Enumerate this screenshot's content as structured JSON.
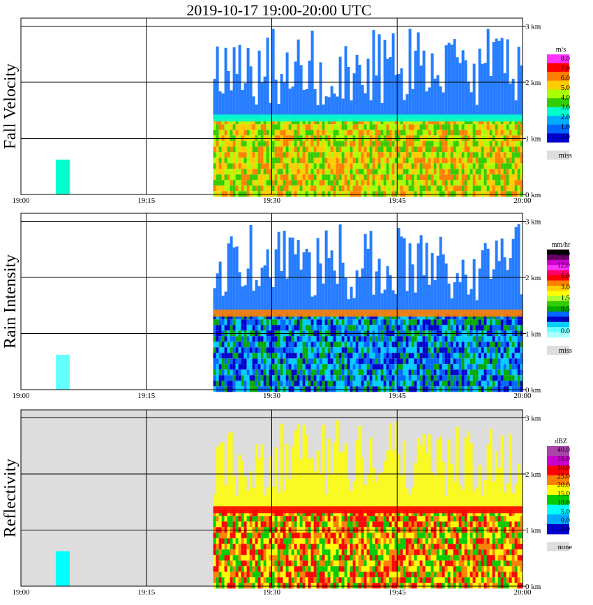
{
  "title": "2019-10-17   19:00-20:00 UTC",
  "chart_data": [
    {
      "type": "heatmap",
      "name": "fall-velocity",
      "ylabel": "Fall Velocity",
      "x_ticks": [
        "19:00",
        "19:15",
        "19:30",
        "19:45",
        "20:00"
      ],
      "x_range_minutes": [
        0,
        60
      ],
      "y_ticks": [
        "0 km",
        "1 km",
        "2 km",
        "3 km"
      ],
      "y_range_km": [
        0,
        3.2
      ],
      "colorbar": {
        "unit": "m/s",
        "labels": [
          "8.0",
          "7.0",
          "6.0",
          "5.0",
          "4.0",
          "3.0",
          "2.0",
          "1.0",
          "0.0"
        ],
        "colors": [
          "#ff33ff",
          "#ff0000",
          "#ff8000",
          "#ffcc00",
          "#aaff00",
          "#33cc00",
          "#00ffcc",
          "#00aaff",
          "#0066ff",
          "#0000cc"
        ],
        "missing_label": "miss",
        "missing_color": "#dddddd"
      },
      "background": "#ffffff"
    },
    {
      "type": "heatmap",
      "name": "rain-intensity",
      "ylabel": "Rain Intensity",
      "x_ticks": [
        "19:00",
        "19:15",
        "19:30",
        "19:45",
        "20:00"
      ],
      "x_range_minutes": [
        0,
        60
      ],
      "y_ticks": [
        "0 km",
        "1 km",
        "2 km",
        "3 km"
      ],
      "y_range_km": [
        0,
        3.2
      ],
      "colorbar": {
        "unit": "mm/hr",
        "labels": [
          "48.0",
          "12.0",
          "6.0",
          "3.0",
          "1.5",
          "0.5",
          "0.1",
          "0.0"
        ],
        "colors": [
          "#000000",
          "#660066",
          "#cc00cc",
          "#ff33ff",
          "#ff0066",
          "#ff0000",
          "#ff8000",
          "#ffcc00",
          "#ffff00",
          "#aaff33",
          "#33cc00",
          "#00aa00",
          "#0066ff",
          "#0000cc",
          "#00ccff",
          "#66ffff",
          "#aaffff"
        ],
        "missing_label": "miss",
        "missing_color": "#dddddd"
      },
      "background": "#ffffff"
    },
    {
      "type": "heatmap",
      "name": "reflectivity",
      "ylabel": "Reflectivity",
      "x_ticks": [
        "19:00",
        "19:15",
        "19:30",
        "19:45",
        "20:00"
      ],
      "x_range_minutes": [
        0,
        60
      ],
      "y_ticks": [
        "0 km",
        "1 km",
        "2 km",
        "3 km"
      ],
      "y_range_km": [
        0,
        3.2
      ],
      "colorbar": {
        "unit": "dBZ",
        "labels": [
          "40.0",
          "35.0",
          "30.0",
          "25.0",
          "20.0",
          "15.0",
          "10.0",
          "5.0",
          "0.0",
          "-5.0"
        ],
        "colors": [
          "#aa44aa",
          "#cc00cc",
          "#ff0000",
          "#ff8000",
          "#ffff00",
          "#00cc00",
          "#00ffff",
          "#00aaff",
          "#0000cc"
        ],
        "missing_label": "none",
        "missing_color": "#dddddd"
      },
      "background": "#dddddd"
    }
  ]
}
